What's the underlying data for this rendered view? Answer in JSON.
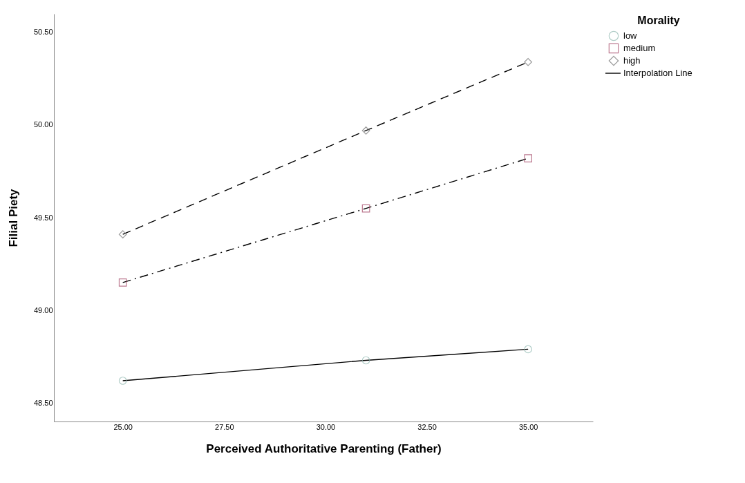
{
  "chart_data": {
    "type": "line",
    "xlabel": "Perceived Authoritative Parenting (Father)",
    "ylabel": "Filial Piety",
    "legend_title": "Morality",
    "x": [
      25,
      31,
      35
    ],
    "series": [
      {
        "name": "low",
        "color": "#8fb8b0",
        "marker": "circle",
        "line_style": "solid",
        "values": [
          48.62,
          48.73,
          48.79
        ]
      },
      {
        "name": "medium",
        "color": "#a04060",
        "marker": "square",
        "line_style": "dotted",
        "values": [
          49.15,
          49.55,
          49.82
        ]
      },
      {
        "name": "high",
        "color": "#707070",
        "marker": "diamond",
        "line_style": "dashed",
        "values": [
          49.41,
          49.97,
          50.34
        ]
      }
    ],
    "annotations": [
      "Interpolation Line"
    ],
    "xlim": [
      23.3,
      36.6
    ],
    "xticks": [
      {
        "value": 25,
        "label": "25.00"
      },
      {
        "value": 27.5,
        "label": "27.50"
      },
      {
        "value": 30,
        "label": "30.00"
      },
      {
        "value": 32.5,
        "label": "32.50"
      },
      {
        "value": 35,
        "label": "35.00"
      }
    ],
    "ylim": [
      48.4,
      50.6
    ],
    "yticks": [
      {
        "value": 48.5,
        "label": "48.50"
      },
      {
        "value": 49,
        "label": "49.00"
      },
      {
        "value": 49.5,
        "label": "49.50"
      },
      {
        "value": 50,
        "label": "50.00"
      },
      {
        "value": 50.5,
        "label": "50.50"
      }
    ],
    "grid": false,
    "legend": "top right"
  }
}
